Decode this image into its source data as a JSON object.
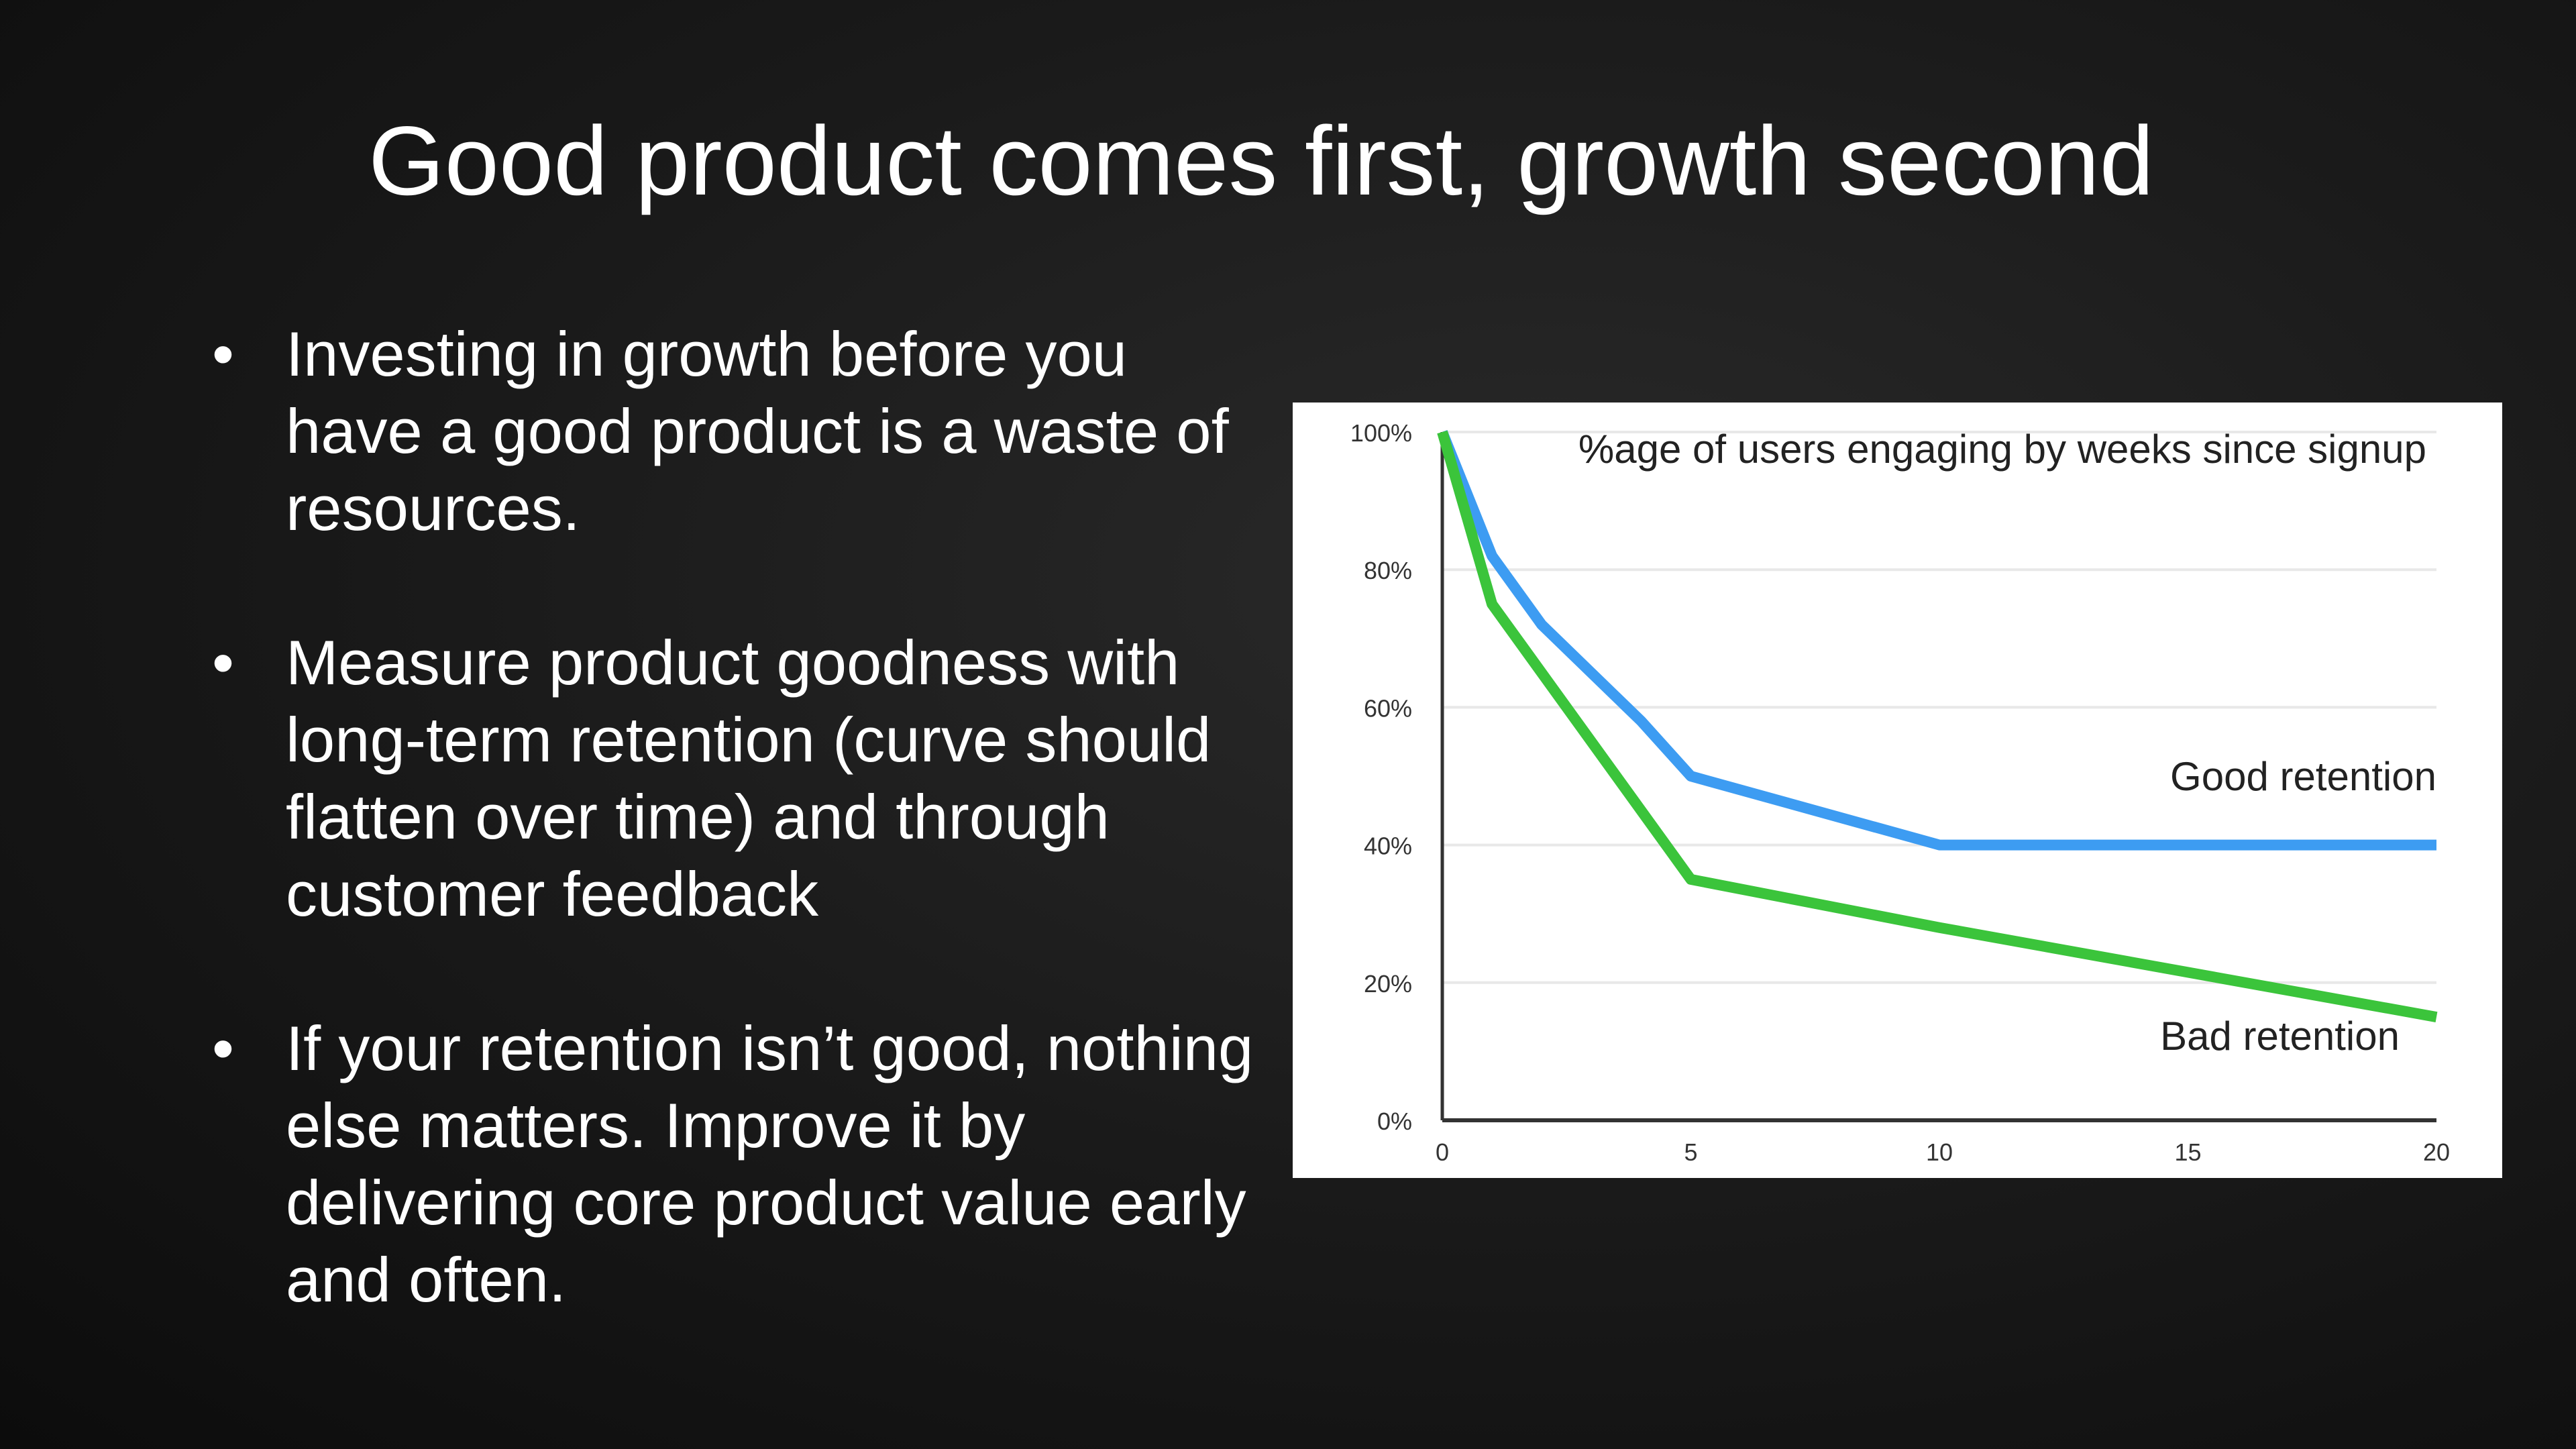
{
  "slide": {
    "title": "Good product comes first, growth second",
    "bullet_symbol": "•",
    "bullets": [
      "Investing in growth before you have a good product is a waste of resources.",
      "Measure product goodness with long-term retention (curve should flatten over time) and through customer feedback",
      "If your retention isn’t good, nothing else matters. Improve it by delivering core product value early and often."
    ]
  },
  "chart_data": {
    "type": "line",
    "title": "%age of users engaging by weeks since signup",
    "xlim": [
      0,
      20
    ],
    "ylim": [
      0,
      100
    ],
    "x_ticks": [
      "0",
      "5",
      "10",
      "15",
      "20"
    ],
    "y_ticks": [
      "0%",
      "20%",
      "40%",
      "60%",
      "80%",
      "100%"
    ],
    "grid": true,
    "series": [
      {
        "name": "Good retention",
        "color": "#3d9cf2",
        "points": [
          [
            0,
            100
          ],
          [
            1,
            82
          ],
          [
            2,
            72
          ],
          [
            4,
            58
          ],
          [
            5,
            50
          ],
          [
            10,
            40
          ],
          [
            20,
            40
          ]
        ]
      },
      {
        "name": "Bad retention",
        "color": "#3bc43b",
        "points": [
          [
            0,
            100
          ],
          [
            1,
            75
          ],
          [
            5,
            35
          ],
          [
            10,
            28
          ],
          [
            20,
            15
          ]
        ]
      }
    ]
  }
}
